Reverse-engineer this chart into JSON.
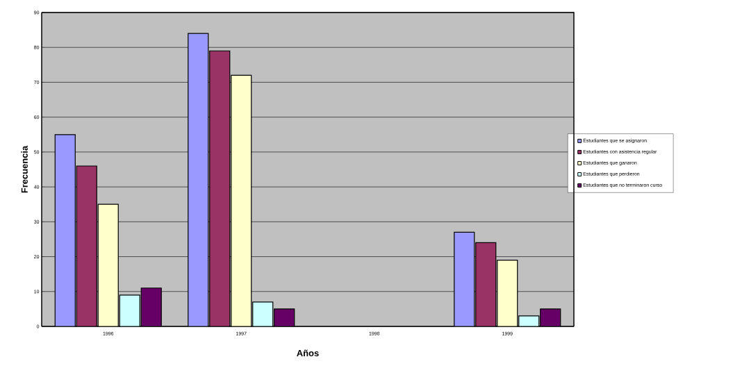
{
  "chart_data": {
    "type": "bar",
    "xlabel": "Años",
    "ylabel": "Frecuencia",
    "categories": [
      "1996",
      "1997",
      "1998",
      "1999"
    ],
    "series": [
      {
        "name": "Estudiantes que se asignaron",
        "color": "#9999ff",
        "values": [
          55,
          84,
          null,
          27
        ]
      },
      {
        "name": "Estudiantes con asistencia regular",
        "color": "#993366",
        "values": [
          46,
          79,
          null,
          24
        ]
      },
      {
        "name": "Estudiantes que ganaron",
        "color": "#ffffcc",
        "values": [
          35,
          72,
          null,
          19
        ]
      },
      {
        "name": "Estudiantes que perdieron",
        "color": "#ccffff",
        "values": [
          9,
          7,
          null,
          3
        ]
      },
      {
        "name": "Estudiantes que no terminaron curso",
        "color": "#660066",
        "values": [
          11,
          5,
          null,
          5
        ]
      }
    ],
    "ylim": [
      0,
      90
    ],
    "yticks": [
      0,
      10,
      20,
      30,
      40,
      50,
      60,
      70,
      80,
      90
    ],
    "grid": "y",
    "legend": "right"
  }
}
